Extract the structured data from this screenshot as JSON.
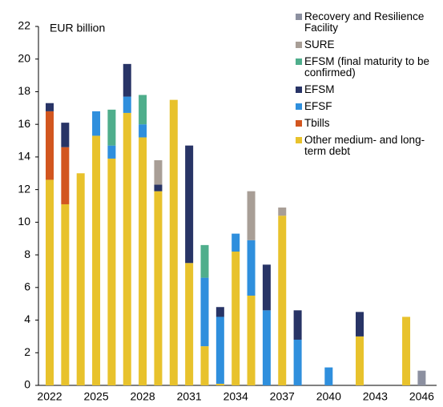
{
  "chart_data": {
    "type": "stacked-bar",
    "annotation": "EUR billion",
    "categories": [
      "2022",
      null,
      null,
      "2025",
      null,
      null,
      "2028",
      null,
      null,
      "2031",
      null,
      null,
      "2034",
      null,
      null,
      "2037",
      null,
      null,
      "2040",
      null,
      null,
      "2043",
      null,
      null,
      "2046"
    ],
    "ylim": [
      0,
      22
    ],
    "yticks": [
      0,
      2,
      4,
      6,
      8,
      10,
      12,
      14,
      16,
      18,
      20,
      22
    ],
    "series": [
      {
        "name": "Other medium- and long-term debt",
        "color": "#e8c22c",
        "values": [
          12.6,
          11.1,
          13.0,
          15.3,
          13.9,
          16.7,
          15.2,
          11.9,
          17.5,
          7.5,
          2.4,
          0.1,
          8.2,
          5.5,
          null,
          10.4,
          null,
          null,
          null,
          null,
          3.0,
          null,
          null,
          4.2,
          null
        ]
      },
      {
        "name": "Tbills",
        "color": "#d2561f",
        "values": [
          4.2,
          3.5,
          null,
          null,
          null,
          null,
          null,
          null,
          null,
          null,
          null,
          null,
          null,
          null,
          null,
          null,
          null,
          null,
          null,
          null,
          null,
          null,
          null,
          null,
          null
        ]
      },
      {
        "name": "EFSF",
        "color": "#2f8fdd",
        "values": [
          null,
          null,
          null,
          1.5,
          0.8,
          1.0,
          0.8,
          null,
          null,
          null,
          4.2,
          4.1,
          1.1,
          3.4,
          4.6,
          null,
          2.8,
          null,
          1.1,
          null,
          null,
          null,
          null,
          null,
          null
        ]
      },
      {
        "name": "EFSM",
        "color": "#283466",
        "values": [
          0.5,
          1.5,
          null,
          null,
          null,
          2.0,
          null,
          0.4,
          null,
          7.2,
          null,
          0.6,
          null,
          null,
          2.8,
          null,
          1.8,
          null,
          null,
          null,
          1.5,
          null,
          null,
          null,
          null
        ]
      },
      {
        "name": "EFSM (final maturity to be confirmed)",
        "color": "#4fae8c",
        "values": [
          null,
          null,
          null,
          null,
          2.2,
          null,
          1.8,
          null,
          null,
          null,
          2.0,
          null,
          null,
          null,
          null,
          null,
          null,
          null,
          null,
          null,
          null,
          null,
          null,
          null,
          null
        ]
      },
      {
        "name": "SURE",
        "color": "#a89e96",
        "values": [
          null,
          null,
          null,
          null,
          null,
          null,
          null,
          1.5,
          null,
          null,
          null,
          null,
          null,
          3.0,
          null,
          0.5,
          null,
          null,
          null,
          null,
          null,
          null,
          null,
          null,
          null
        ]
      },
      {
        "name": "Recovery and Resilience Facility",
        "color": "#8c90a0",
        "values": [
          null,
          null,
          null,
          null,
          null,
          null,
          null,
          null,
          null,
          null,
          null,
          null,
          null,
          null,
          null,
          null,
          null,
          null,
          null,
          null,
          null,
          null,
          null,
          null,
          0.9
        ]
      }
    ]
  }
}
